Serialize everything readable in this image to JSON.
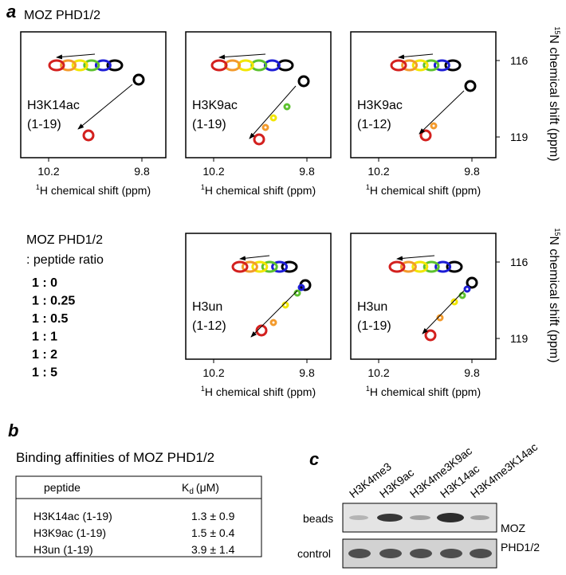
{
  "panel_a": {
    "label": "a",
    "title": "MOZ PHD1/2",
    "x_axis_sup": "1",
    "x_axis_label": "H chemical shift (ppm)",
    "y_axis_sup": "15",
    "y_axis_label": "N chemical shift (ppm)",
    "xticks": [
      "10.2",
      "9.8"
    ],
    "yticks": [
      "116",
      "119"
    ],
    "spectra": [
      {
        "peptide": "H3K14ac",
        "range": "(1-19)"
      },
      {
        "peptide": "H3K9ac",
        "range": "(1-19)"
      },
      {
        "peptide": "H3K9ac",
        "range": "(1-12)"
      },
      {
        "peptide": "H3un",
        "range": "(1-12)"
      },
      {
        "peptide": "H3un",
        "range": "(1-19)"
      }
    ],
    "legend": {
      "title": "MOZ PHD1/2",
      "subtitle": ": peptide ratio",
      "ratios": [
        {
          "label": "1 : 0",
          "color": "#000000"
        },
        {
          "label": "1 : 0.25",
          "color": "#1c1cd6"
        },
        {
          "label": "1 : 0.5",
          "color": "#5cc12e"
        },
        {
          "label": "1 : 1",
          "color": "#f2e600"
        },
        {
          "label": "1 : 2",
          "color": "#f39a2c"
        },
        {
          "label": "1 : 5",
          "color": "#d3201e"
        }
      ]
    }
  },
  "panel_b": {
    "label": "b",
    "title": "Binding affinities of  MOZ PHD1/2",
    "header": {
      "peptide": "peptide",
      "kd_symbol": "K",
      "kd_subscript": "d",
      "kd_unit": "(μM)"
    },
    "rows": [
      [
        "H3K14ac (1-19)",
        "1.3 ± 0.9"
      ],
      [
        "H3K9ac (1-19)",
        "1.5 ± 0.4"
      ],
      [
        "H3un (1-19)",
        "3.9 ± 1.4"
      ]
    ]
  },
  "panel_c": {
    "label": "c",
    "lanes": [
      "H3K4me3",
      "H3K9ac",
      "H3K4me3K9ac",
      "H3K14ac",
      "H3K4me3K14ac"
    ],
    "rows": [
      "beads",
      "control"
    ],
    "protein": [
      "MOZ",
      "PHD1/2"
    ]
  }
}
